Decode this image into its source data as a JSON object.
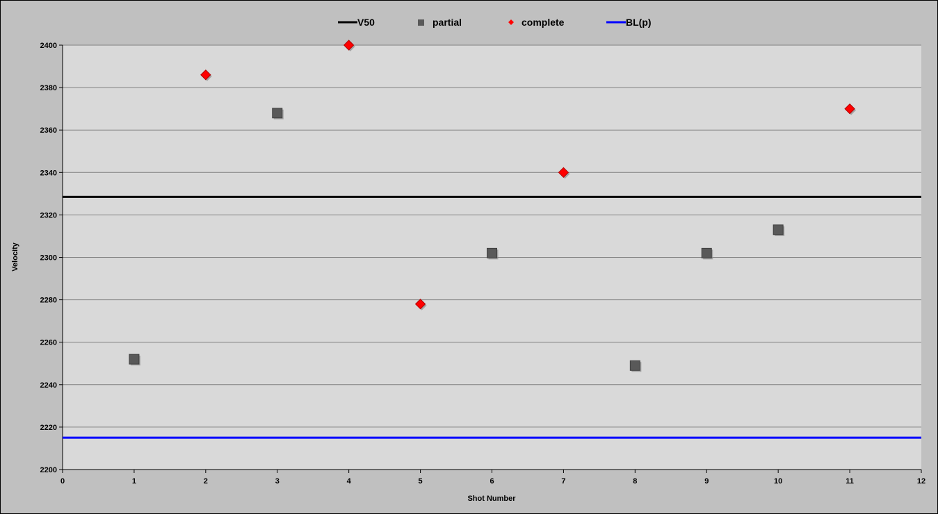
{
  "chart_data": {
    "type": "scatter",
    "title": "",
    "xlabel": "Shot Number",
    "ylabel": "Velocity",
    "xlim": [
      0,
      12
    ],
    "ylim": [
      2200,
      2400
    ],
    "x_ticks": [
      0,
      1,
      2,
      3,
      4,
      5,
      6,
      7,
      8,
      9,
      10,
      11,
      12
    ],
    "y_ticks": [
      2200,
      2220,
      2240,
      2260,
      2280,
      2300,
      2320,
      2340,
      2360,
      2380,
      2400
    ],
    "grid": "horizontal",
    "legend_position": "top",
    "legend": [
      "V50",
      "partial",
      "complete",
      "BL(p)"
    ],
    "series": [
      {
        "name": "partial",
        "kind": "points",
        "marker": "square",
        "color": "#595959",
        "points": [
          [
            1,
            2252
          ],
          [
            3,
            2368
          ],
          [
            6,
            2302
          ],
          [
            8,
            2249
          ],
          [
            9,
            2302
          ],
          [
            10,
            2313
          ]
        ]
      },
      {
        "name": "complete",
        "kind": "points",
        "marker": "diamond",
        "color": "#ff0000",
        "points": [
          [
            2,
            2386
          ],
          [
            4,
            2400
          ],
          [
            5,
            2278
          ],
          [
            7,
            2340
          ],
          [
            11,
            2370
          ]
        ]
      }
    ],
    "reference_lines": [
      {
        "name": "V50",
        "y": 2328.5,
        "color": "#000000"
      },
      {
        "name": "BL(p)",
        "y": 2215,
        "color": "#0000ff"
      }
    ],
    "colors": {
      "plot_bg": "#d9d9d9",
      "frame_bg": "#c0c0c0",
      "grid": "#808080"
    }
  }
}
